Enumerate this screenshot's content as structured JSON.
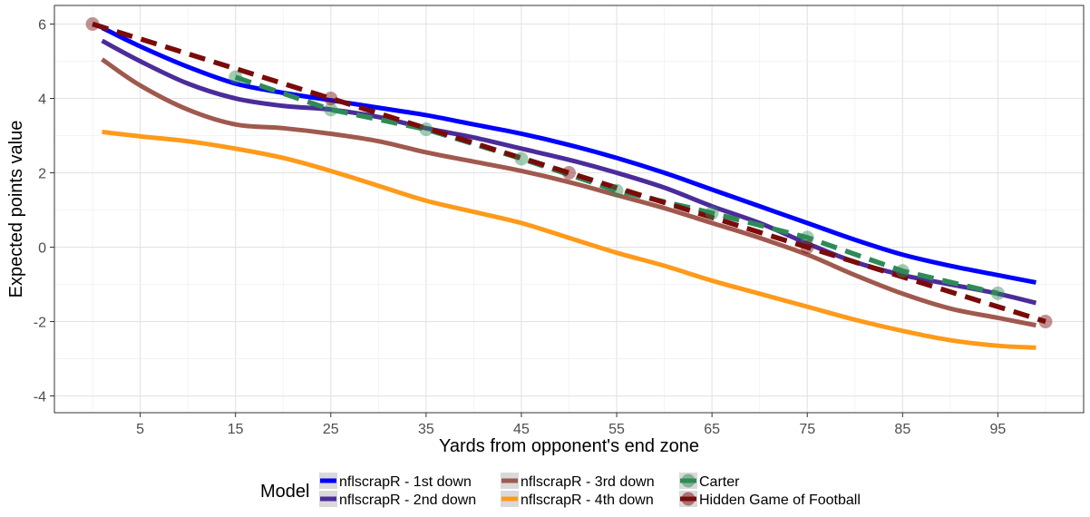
{
  "chart_data": {
    "type": "line",
    "title": "",
    "xlabel": "Yards from opponent's end zone",
    "ylabel": "Expected points value",
    "xlim": [
      -4,
      104
    ],
    "ylim": [
      -4.45,
      6.5
    ],
    "x_ticks": [
      5,
      15,
      25,
      35,
      45,
      55,
      65,
      75,
      85,
      95
    ],
    "x_tick_labels": [
      "5",
      "15",
      "25",
      "35",
      "45",
      "55",
      "65",
      "75",
      "85",
      "95"
    ],
    "y_ticks": [
      -4,
      -2,
      0,
      2,
      4,
      6
    ],
    "y_tick_labels": [
      "-4",
      "-2",
      "0",
      "2",
      "4",
      "6"
    ],
    "grid": true,
    "legend": {
      "title": "Model",
      "position": "bottom",
      "entries": [
        "nflscrapR - 1st down",
        "nflscrapR - 2nd down",
        "nflscrapR - 3rd down",
        "nflscrapR - 4th down",
        "Carter",
        "Hidden Game of Football"
      ]
    },
    "series": [
      {
        "name": "nflscrapR - 1st down",
        "color": "#0000ff",
        "style": "solid",
        "x": [
          1,
          5,
          10,
          15,
          20,
          25,
          30,
          35,
          40,
          45,
          50,
          55,
          60,
          65,
          70,
          75,
          80,
          85,
          90,
          95,
          99
        ],
        "y": [
          5.9,
          5.4,
          4.85,
          4.4,
          4.15,
          3.95,
          3.75,
          3.55,
          3.3,
          3.05,
          2.75,
          2.4,
          2.0,
          1.55,
          1.1,
          0.65,
          0.2,
          -0.2,
          -0.5,
          -0.75,
          -0.95
        ]
      },
      {
        "name": "nflscrapR - 2nd down",
        "color": "#4b2c9a",
        "style": "solid",
        "x": [
          1,
          5,
          10,
          15,
          20,
          25,
          30,
          35,
          40,
          45,
          50,
          55,
          60,
          65,
          70,
          75,
          80,
          85,
          90,
          95,
          99
        ],
        "y": [
          5.55,
          5.0,
          4.4,
          4.0,
          3.8,
          3.7,
          3.5,
          3.2,
          2.95,
          2.65,
          2.35,
          2.0,
          1.6,
          1.1,
          0.65,
          0.1,
          -0.4,
          -0.75,
          -1.0,
          -1.25,
          -1.5
        ]
      },
      {
        "name": "nflscrapR - 3rd down",
        "color": "#a0594e",
        "style": "solid",
        "x": [
          1,
          5,
          10,
          15,
          20,
          25,
          30,
          35,
          40,
          45,
          50,
          55,
          60,
          65,
          70,
          75,
          80,
          85,
          90,
          95,
          99
        ],
        "y": [
          5.05,
          4.35,
          3.7,
          3.3,
          3.2,
          3.05,
          2.85,
          2.55,
          2.3,
          2.05,
          1.75,
          1.4,
          1.05,
          0.65,
          0.25,
          -0.2,
          -0.75,
          -1.25,
          -1.65,
          -1.9,
          -2.1
        ]
      },
      {
        "name": "nflscrapR - 4th down",
        "color": "#ff9a1a",
        "style": "solid",
        "x": [
          1,
          5,
          10,
          15,
          20,
          25,
          30,
          35,
          40,
          45,
          50,
          55,
          60,
          65,
          70,
          75,
          80,
          85,
          90,
          95,
          99
        ],
        "y": [
          3.1,
          2.98,
          2.85,
          2.65,
          2.4,
          2.05,
          1.65,
          1.25,
          0.95,
          0.65,
          0.25,
          -0.15,
          -0.5,
          -0.9,
          -1.25,
          -1.6,
          -1.95,
          -2.25,
          -2.5,
          -2.65,
          -2.7
        ]
      },
      {
        "name": "Carter",
        "color": "#2e8b57",
        "style": "dashed",
        "x": [
          15,
          25,
          35,
          45,
          55,
          65,
          75,
          85,
          95
        ],
        "y": [
          4.57,
          3.7,
          3.17,
          2.38,
          1.52,
          0.92,
          0.26,
          -0.64,
          -1.24
        ],
        "points": true
      },
      {
        "name": "Hidden Game of Football",
        "color": "#7b0a0a",
        "style": "dashed",
        "x": [
          0,
          25,
          50,
          75,
          100
        ],
        "y": [
          6,
          4,
          2,
          0,
          -2
        ],
        "points": true
      }
    ]
  }
}
